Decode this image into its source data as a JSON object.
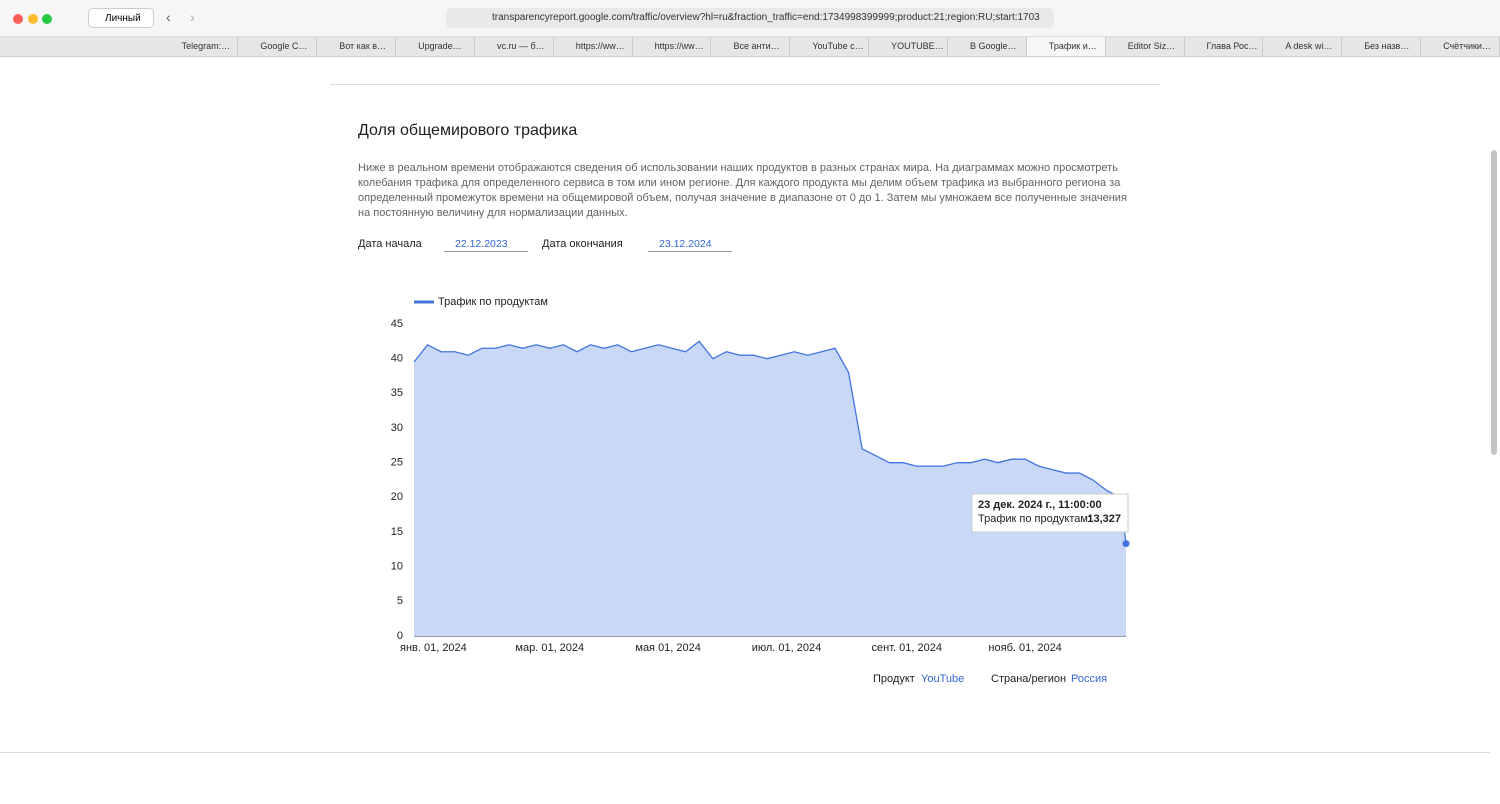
{
  "browser": {
    "profile": "Личный",
    "url": "transparencyreport.google.com/traffic/overview?hl=ru&fraction_traffic=end:1734998399999;product:21;region:RU;start:1703",
    "tabs": [
      "Telegram:…",
      "Google C…",
      "Вот как в…",
      "Upgrade…",
      "vc.ru — б…",
      "https://ww…",
      "https://ww…",
      "Все анти…",
      "YouTube с…",
      "YOUTUBE…",
      "В Google…",
      "Трафик и…",
      "Editor Siz…",
      "Глава Рос…",
      "A desk wi…",
      "Без назв…",
      "Счётчики…"
    ],
    "active_tab": 11
  },
  "page": {
    "title": "Доля общемирового трафика",
    "description": "Ниже в реальном времени отображаются сведения об использовании наших продуктов в разных странах мира. На диаграммах можно просмотреть колебания трафика для определенного сервиса в том или ином регионе. Для каждого продукта мы делим объем трафика из выбранного региона за определенный промежуток времени на общемировой объем, получая значение в диапазоне от 0 до 1. Затем мы умножаем все полученные значения на постоянную величину для нормализации данных.",
    "start_label": "Дата начала",
    "start_value": "22.12.2023",
    "end_label": "Дата окончания",
    "end_value": "23.12.2024",
    "product_label": "Продукт",
    "product_value": "YouTube",
    "region_label": "Страна/регион",
    "region_value": "Россия"
  },
  "chart_data": {
    "type": "area",
    "x": [
      "2023-12-22",
      "2023-12-29",
      "2024-01-05",
      "2024-01-12",
      "2024-01-19",
      "2024-01-26",
      "2024-02-02",
      "2024-02-09",
      "2024-02-16",
      "2024-02-23",
      "2024-03-01",
      "2024-03-08",
      "2024-03-15",
      "2024-03-22",
      "2024-03-29",
      "2024-04-05",
      "2024-04-12",
      "2024-04-19",
      "2024-04-26",
      "2024-05-03",
      "2024-05-10",
      "2024-05-17",
      "2024-05-24",
      "2024-05-31",
      "2024-06-07",
      "2024-06-14",
      "2024-06-21",
      "2024-06-28",
      "2024-07-05",
      "2024-07-12",
      "2024-07-19",
      "2024-07-26",
      "2024-08-02",
      "2024-08-09",
      "2024-08-16",
      "2024-08-23",
      "2024-08-30",
      "2024-09-06",
      "2024-09-13",
      "2024-09-20",
      "2024-09-27",
      "2024-10-04",
      "2024-10-11",
      "2024-10-18",
      "2024-10-25",
      "2024-11-01",
      "2024-11-08",
      "2024-11-15",
      "2024-11-22",
      "2024-11-29",
      "2024-12-06",
      "2024-12-13",
      "2024-12-20",
      "2024-12-23"
    ],
    "series": [
      {
        "name": "Трафик по продуктам",
        "color": "#4374e0",
        "fill": "#c9d8f6",
        "values": [
          39.5,
          42,
          41,
          41,
          40.5,
          41.5,
          41.5,
          42,
          41.5,
          42,
          41.5,
          42,
          41,
          42,
          41.5,
          42,
          41,
          41.5,
          42,
          41.5,
          41,
          42.5,
          40,
          41,
          40.5,
          40.5,
          40,
          40.5,
          41,
          40.5,
          41,
          41.5,
          38,
          27,
          26,
          25,
          25,
          24.5,
          24.5,
          24.5,
          25,
          25,
          25.5,
          25,
          25.5,
          25.5,
          24.5,
          24,
          23.5,
          23.5,
          22.5,
          21,
          20,
          13.327
        ]
      }
    ],
    "xlim": [
      "2023-12-22",
      "2024-12-23"
    ],
    "xticks": [
      {
        "value": "2024-01-01",
        "label": "янв. 01, 2024"
      },
      {
        "value": "2024-03-01",
        "label": "мар. 01, 2024"
      },
      {
        "value": "2024-05-01",
        "label": "мая 01, 2024"
      },
      {
        "value": "2024-07-01",
        "label": "июл. 01, 2024"
      },
      {
        "value": "2024-09-01",
        "label": "сент. 01, 2024"
      },
      {
        "value": "2024-11-01",
        "label": "нояб. 01, 2024"
      }
    ],
    "ylim": [
      0,
      45
    ],
    "yticks": [
      0,
      5,
      10,
      15,
      20,
      25,
      30,
      35,
      40,
      45
    ],
    "tooltip": {
      "title": "23 дек. 2024 г., 11:00:00",
      "label": "Трафик по продуктам:",
      "value_label": "13,327"
    }
  }
}
